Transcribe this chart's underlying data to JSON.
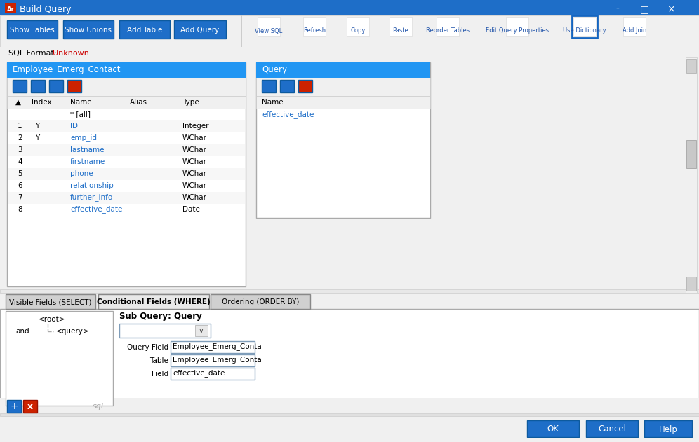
{
  "title_bar_text": "Build Query",
  "title_bar_bg": "#1E6EC8",
  "main_bg": "#F0F0F0",
  "blue_button_color": "#1E6EC8",
  "toolbar_buttons": [
    "Show Tables",
    "Show Unions",
    "Add Table",
    "Add Query"
  ],
  "icon_labels": [
    "View SQL",
    "Refresh",
    "Copy",
    "Paste",
    "Reorder Tables",
    "Edit Query Properties",
    "Use Dictionary",
    "Add Join"
  ],
  "sql_format_text": "SQL Format: Unknown",
  "left_table_title": "Employee_Emerg_Contact",
  "right_table_title": "Query",
  "table_rows": [
    [
      "",
      "",
      "* [all]",
      "",
      ""
    ],
    [
      "1",
      "Y",
      "ID",
      "",
      "Integer"
    ],
    [
      "2",
      "Y",
      "emp_id",
      "",
      "WChar"
    ],
    [
      "3",
      "",
      "lastname",
      "",
      "WChar"
    ],
    [
      "4",
      "",
      "firstname",
      "",
      "WChar"
    ],
    [
      "5",
      "",
      "phone",
      "",
      "WChar"
    ],
    [
      "6",
      "",
      "relationship",
      "",
      "WChar"
    ],
    [
      "7",
      "",
      "further_info",
      "",
      "WChar"
    ],
    [
      "8",
      "",
      "effective_date",
      "",
      "Date"
    ]
  ],
  "query_fields": [
    "effective_date"
  ],
  "tab_labels": [
    "Visible Fields (SELECT)",
    "Conditional Fields (WHERE)",
    "Ordering (ORDER BY)"
  ],
  "active_tab": 1,
  "tree_root": "<root>",
  "tree_and": "and",
  "tree_query": "<query>",
  "subquery_title": "Sub Query: Query",
  "operator_value": "=",
  "query_field_label": "Query Field",
  "query_field_value": "Employee_Emerg_Conta",
  "table_label": "Table",
  "table_value": "Employee_Emerg_Conta",
  "field_label": "Field",
  "field_value": "effective_date",
  "bottom_buttons": [
    "OK",
    "Cancel",
    "Help"
  ],
  "blue_header_color": "#2196F3",
  "link_blue": "#1E6EC8",
  "use_dict_border": "#1565C0",
  "input_border": "#7F9DB9",
  "separator_color": "#A0A0A0"
}
